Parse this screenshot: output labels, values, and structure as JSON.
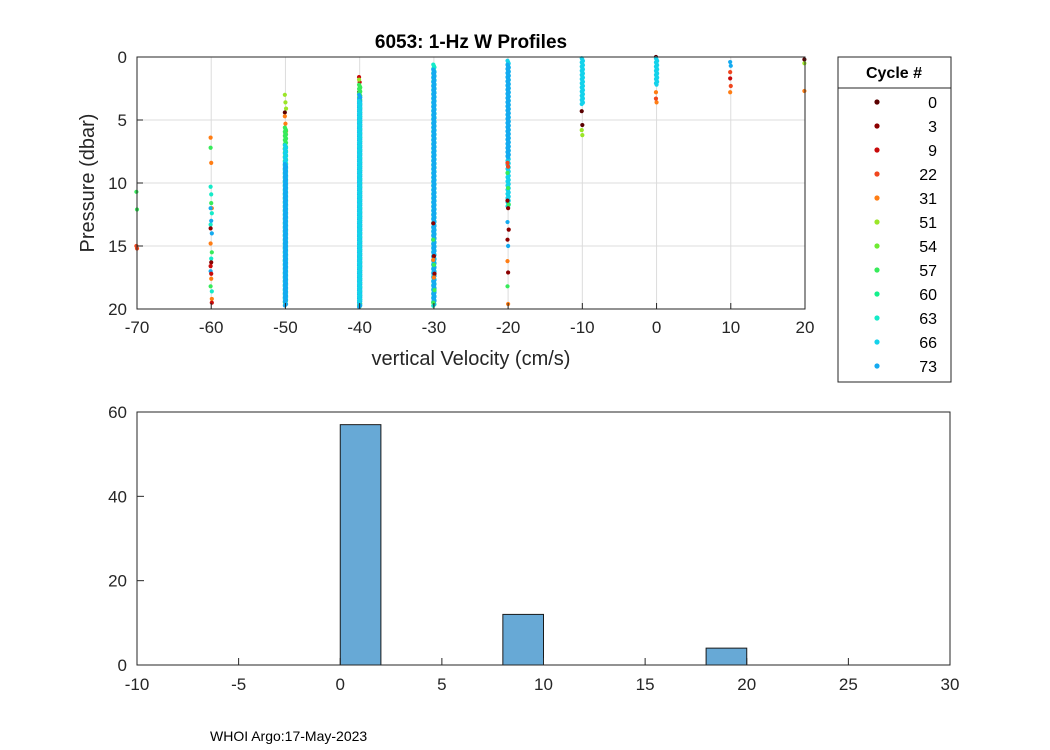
{
  "footer": "WHOI Argo:17-May-2023",
  "chart_data": [
    {
      "type": "scatter",
      "title": "6053: 1-Hz W Profiles",
      "xlabel": "vertical Velocity (cm/s)",
      "ylabel": "Pressure (dbar)",
      "xlim": [
        -70,
        20
      ],
      "ylim": [
        0,
        20
      ],
      "y_reversed": true,
      "grid": true,
      "x_ticks": [
        -70,
        -60,
        -50,
        -40,
        -30,
        -20,
        -10,
        0,
        10,
        20
      ],
      "y_ticks": [
        0,
        5,
        10,
        15,
        20
      ],
      "legend": {
        "title": "Cycle #",
        "placement": "outside-right",
        "entries": [
          {
            "label": "0",
            "color": "#5a0000"
          },
          {
            "label": "3",
            "color": "#8c0000"
          },
          {
            "label": "9",
            "color": "#c80a0a"
          },
          {
            "label": "22",
            "color": "#f0461e"
          },
          {
            "label": "31",
            "color": "#ff7d14"
          },
          {
            "label": "51",
            "color": "#9be628"
          },
          {
            "label": "54",
            "color": "#6eeb32"
          },
          {
            "label": "57",
            "color": "#37eb5a"
          },
          {
            "label": "60",
            "color": "#14f08c"
          },
          {
            "label": "63",
            "color": "#14ebc8"
          },
          {
            "label": "66",
            "color": "#14d2eb"
          },
          {
            "label": "73",
            "color": "#14aaf0"
          }
        ]
      },
      "columns": [
        {
          "x": -70,
          "segments": [
            {
              "color": "#37eb5a",
              "y": [
                10.7,
                12.1
              ]
            },
            {
              "color": "#f0461e",
              "y": [
                15.0,
                15.2
              ]
            }
          ]
        },
        {
          "x": -60,
          "segments": [
            {
              "color": "#ff7d14",
              "y": [
                6.4,
                8.4,
                12.0,
                14.8,
                17.6,
                19.2
              ]
            },
            {
              "color": "#37eb5a",
              "y": [
                7.2,
                11.6,
                15.5,
                18.2
              ]
            },
            {
              "color": "#14ebc8",
              "y": [
                10.3,
                10.9,
                12.4,
                13.3,
                16.0,
                18.6
              ]
            },
            {
              "color": "#14aaf0",
              "y": [
                12.0,
                13.0,
                14.0,
                17.0
              ]
            },
            {
              "color": "#8c0000",
              "y": [
                13.6,
                16.3
              ]
            },
            {
              "color": "#c80a0a",
              "y": [
                16.6,
                17.2,
                19.5
              ]
            }
          ]
        },
        {
          "x": -50,
          "segments": [
            {
              "color": "#9be628",
              "y": [
                3.0,
                3.6,
                4.1
              ]
            },
            {
              "color": "#5a0000",
              "y": [
                4.4,
                6.1
              ]
            },
            {
              "color": "#ff7d14",
              "y": [
                4.7,
                5.3,
                5.9,
                7.3
              ]
            },
            {
              "color": "#37eb5a",
              "y0": 5.6,
              "y1": 19.6
            },
            {
              "color": "#14d2eb",
              "y0": 7.0,
              "y1": 19.4
            },
            {
              "color": "#14aaf0",
              "y0": 8.5,
              "y1": 19.8
            }
          ]
        },
        {
          "x": -40,
          "segments": [
            {
              "color": "#c80a0a",
              "y": [
                1.6,
                2.0
              ]
            },
            {
              "color": "#9be628",
              "y": [
                1.8,
                2.5
              ]
            },
            {
              "color": "#5a0000",
              "y": [
                2.8
              ]
            },
            {
              "color": "#37eb5a",
              "y0": 2.2,
              "y1": 19.8
            },
            {
              "color": "#14aaf0",
              "y0": 3.0,
              "y1": 19.9
            },
            {
              "color": "#14d2eb",
              "y0": 3.5,
              "y1": 19.5
            }
          ]
        },
        {
          "x": -30,
          "segments": [
            {
              "color": "#14ebc8",
              "y0": 0.6,
              "y1": 19.8
            },
            {
              "color": "#14aaf0",
              "y0": 1.0,
              "y1": 19.6
            },
            {
              "color": "#37eb5a",
              "y": [
                14.5,
                16.5,
                18.5,
                19.5
              ]
            },
            {
              "color": "#8c0000",
              "y": [
                13.2,
                15.8,
                17.2
              ]
            },
            {
              "color": "#ff7d14",
              "y": [
                16.1,
                17.5
              ]
            }
          ]
        },
        {
          "x": -20,
          "segments": [
            {
              "color": "#14d2eb",
              "y0": 0.3,
              "y1": 12.0
            },
            {
              "color": "#14aaf0",
              "y0": 0.6,
              "y1": 8.0
            },
            {
              "color": "#f0461e",
              "y": [
                8.4,
                8.7
              ]
            },
            {
              "color": "#37eb5a",
              "y": [
                9.2,
                10.4,
                11.7
              ]
            },
            {
              "color": "#8c0000",
              "y": [
                11.4,
                12.0,
                13.7,
                14.5,
                17.1
              ]
            },
            {
              "color": "#14aaf0",
              "y": [
                13.1,
                15.0
              ]
            },
            {
              "color": "#ff7d14",
              "y": [
                16.2,
                19.6
              ]
            },
            {
              "color": "#37eb5a",
              "y": [
                18.2
              ]
            }
          ]
        },
        {
          "x": -10,
          "segments": [
            {
              "color": "#14d2eb",
              "y0": 0.1,
              "y1": 3.8
            },
            {
              "color": "#5a0000",
              "y": [
                4.3,
                5.4
              ]
            },
            {
              "color": "#9be628",
              "y": [
                5.8,
                6.2
              ]
            }
          ]
        },
        {
          "x": 0,
          "segments": [
            {
              "color": "#5a0000",
              "y": [
                0.0
              ]
            },
            {
              "color": "#14d2eb",
              "y0": 0.1,
              "y1": 2.2
            },
            {
              "color": "#ff7d14",
              "y": [
                2.8,
                3.6
              ]
            },
            {
              "color": "#f0461e",
              "y": [
                3.3
              ]
            }
          ]
        },
        {
          "x": 10,
          "segments": [
            {
              "color": "#14aaf0",
              "y": [
                0.4,
                0.7
              ]
            },
            {
              "color": "#f0461e",
              "y": [
                1.2,
                2.3
              ]
            },
            {
              "color": "#c80a0a",
              "y": [
                1.7
              ]
            },
            {
              "color": "#ff7d14",
              "y": [
                2.8
              ]
            }
          ]
        },
        {
          "x": 20,
          "segments": [
            {
              "color": "#5a0000",
              "y": [
                0.2
              ]
            },
            {
              "color": "#9be628",
              "y": [
                0.5
              ]
            },
            {
              "color": "#ff7d14",
              "y": [
                2.7
              ]
            }
          ]
        }
      ]
    },
    {
      "type": "bar",
      "title": "",
      "xlabel": "",
      "ylabel": "",
      "xlim": [
        -10,
        30
      ],
      "ylim": [
        0,
        60
      ],
      "grid": false,
      "x_ticks": [
        -10,
        -5,
        0,
        5,
        10,
        15,
        20,
        25,
        30
      ],
      "y_ticks": [
        0,
        20,
        40,
        60
      ],
      "bar_color": "#67a9d6",
      "bins": [
        {
          "x0": 0,
          "x1": 2,
          "value": 57
        },
        {
          "x0": 8,
          "x1": 10,
          "value": 12
        },
        {
          "x0": 18,
          "x1": 20,
          "value": 4
        }
      ]
    }
  ]
}
